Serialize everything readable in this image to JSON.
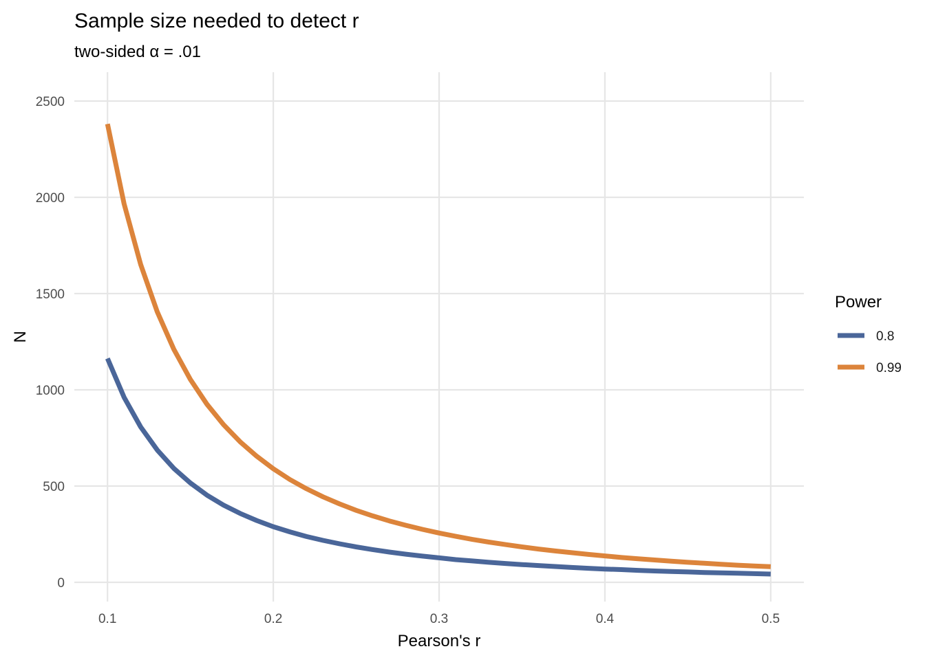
{
  "chart_data": {
    "type": "line",
    "title": "Sample size needed to detect r",
    "subtitle": "two-sided α = .01",
    "xlabel": "Pearson's r",
    "ylabel": "N",
    "xlim": [
      0.08,
      0.52
    ],
    "ylim": [
      -100,
      2650
    ],
    "x_ticks": [
      0.1,
      0.2,
      0.3,
      0.4,
      0.5
    ],
    "x_tick_labels": [
      "0.1",
      "0.2",
      "0.3",
      "0.4",
      "0.5"
    ],
    "y_ticks": [
      0,
      500,
      1000,
      1500,
      2000,
      2500
    ],
    "y_tick_labels": [
      "0",
      "500",
      "1000",
      "1500",
      "2000",
      "2500"
    ],
    "grid": true,
    "legend": {
      "title": "Power",
      "position": "right"
    },
    "x": [
      0.1,
      0.11,
      0.12,
      0.13,
      0.14,
      0.15,
      0.16,
      0.17,
      0.18,
      0.19,
      0.2,
      0.21,
      0.22,
      0.23,
      0.24,
      0.25,
      0.26,
      0.27,
      0.28,
      0.29,
      0.3,
      0.31,
      0.32,
      0.33,
      0.34,
      0.35,
      0.36,
      0.37,
      0.38,
      0.39,
      0.4,
      0.41,
      0.42,
      0.43,
      0.44,
      0.45,
      0.46,
      0.47,
      0.48,
      0.49,
      0.5
    ],
    "series": [
      {
        "name": "0.8",
        "color": "#4a6699",
        "values": [
          1163,
          961,
          807,
          687,
          592,
          516,
          453,
          401,
          358,
          321,
          289,
          262,
          238,
          218,
          200,
          184,
          170,
          157,
          146,
          136,
          127,
          118,
          111,
          104,
          98,
          92,
          87,
          82,
          77,
          73,
          69,
          66,
          62,
          59,
          56,
          54,
          51,
          49,
          47,
          45,
          43
        ]
      },
      {
        "name": "0.99",
        "color": "#dc843b",
        "values": [
          2381,
          1966,
          1651,
          1405,
          1211,
          1054,
          925,
          819,
          730,
          655,
          590,
          534,
          486,
          444,
          407,
          374,
          345,
          319,
          296,
          275,
          256,
          239,
          223,
          209,
          196,
          184,
          173,
          163,
          154,
          145,
          137,
          129,
          122,
          116,
          110,
          104,
          99,
          94,
          89,
          85,
          81
        ]
      }
    ]
  }
}
